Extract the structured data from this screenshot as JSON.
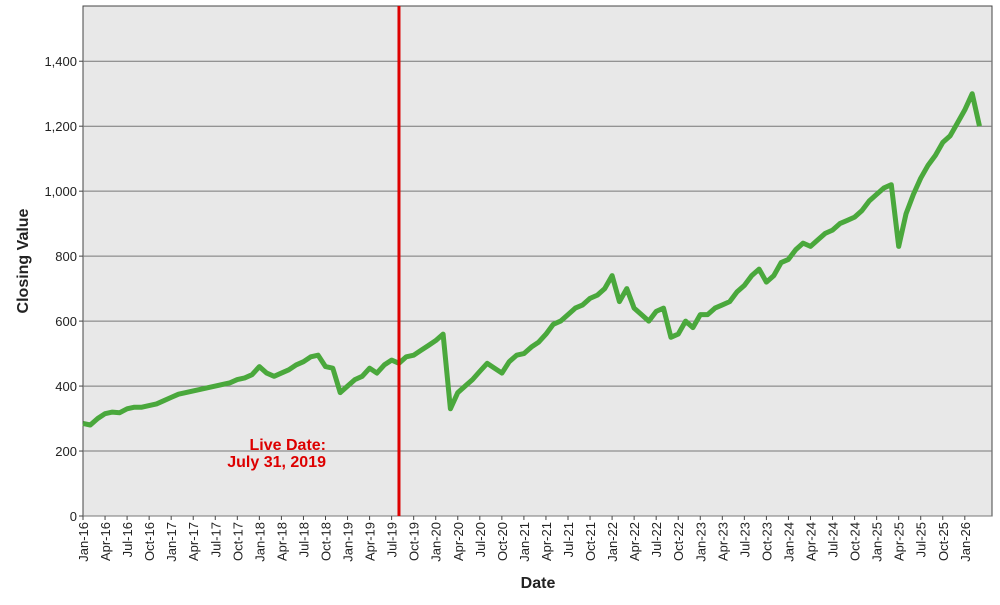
{
  "chart_data": {
    "type": "line",
    "x_label": "Date",
    "y_label": "Closing Value",
    "categories": [
      "Jan-16",
      null,
      null,
      "Apr-16",
      null,
      null,
      "Jul-16",
      null,
      null,
      "Oct-16",
      null,
      null,
      "Jan-17",
      null,
      null,
      "Apr-17",
      null,
      null,
      "Jul-17",
      null,
      null,
      "Oct-17",
      null,
      null,
      "Jan-18",
      null,
      null,
      "Apr-18",
      null,
      null,
      "Jul-18",
      null,
      null,
      "Oct-18",
      null,
      null,
      "Jan-19",
      null,
      null,
      "Apr-19",
      null,
      null,
      "Jul-19",
      null,
      null,
      "Oct-19",
      null,
      null,
      "Jan-20",
      null,
      null,
      "Apr-20",
      null,
      null,
      "Jul-20",
      null,
      null,
      "Oct-20",
      null,
      null,
      "Jan-21",
      null,
      null,
      "Apr-21",
      null,
      null,
      "Jul-21",
      null,
      null,
      "Oct-21",
      null,
      null,
      "Jan-22",
      null,
      null,
      "Apr-22",
      null,
      null,
      "Jul-22",
      null,
      null,
      "Oct-22",
      null,
      null,
      "Jan-23",
      null,
      null,
      "Apr-23",
      null,
      null,
      "Jul-23",
      null,
      null,
      "Oct-23",
      null,
      null,
      "Jan-24",
      null,
      null,
      "Apr-24",
      null,
      null,
      "Jul-24",
      null,
      null,
      "Oct-24",
      null,
      null,
      "Jan-25",
      null,
      null,
      "Apr-25",
      null,
      null,
      "Jul-25",
      null,
      null,
      "Oct-25",
      null,
      null,
      "Jan-26",
      null,
      null
    ],
    "values": [
      285,
      280,
      300,
      315,
      320,
      318,
      330,
      335,
      335,
      340,
      345,
      355,
      365,
      375,
      380,
      385,
      390,
      395,
      400,
      405,
      410,
      420,
      425,
      435,
      460,
      440,
      430,
      440,
      450,
      465,
      475,
      490,
      495,
      460,
      455,
      380,
      400,
      420,
      430,
      455,
      440,
      465,
      480,
      470,
      490,
      495,
      510,
      525,
      540,
      560,
      330,
      380,
      400,
      420,
      445,
      470,
      455,
      440,
      475,
      495,
      500,
      520,
      535,
      560,
      590,
      600,
      620,
      640,
      650,
      670,
      680,
      700,
      740,
      660,
      700,
      640,
      620,
      600,
      630,
      640,
      550,
      560,
      600,
      580,
      620,
      620,
      640,
      650,
      660,
      690,
      710,
      740,
      760,
      720,
      740,
      780,
      790,
      820,
      840,
      830,
      850,
      870,
      880,
      900,
      910,
      920,
      940,
      970,
      990,
      1010,
      1020,
      830,
      930,
      990,
      1040,
      1080,
      1110,
      1150,
      1170,
      1210,
      1250,
      1300,
      1200
    ],
    "color": "#4aa83c",
    "ylim": [
      0,
      1570
    ],
    "yticks": [
      0,
      200,
      400,
      600,
      800,
      {
        "value": 1000,
        "label": "1,000"
      },
      {
        "value": 1200,
        "label": "1,200"
      },
      {
        "value": 1400,
        "label": "1,400"
      }
    ],
    "grid": true,
    "marker_line": {
      "x": "Jul-19",
      "color": "#dd0000"
    },
    "annotation": [
      "Live Date:",
      "July 31, 2019"
    ]
  }
}
